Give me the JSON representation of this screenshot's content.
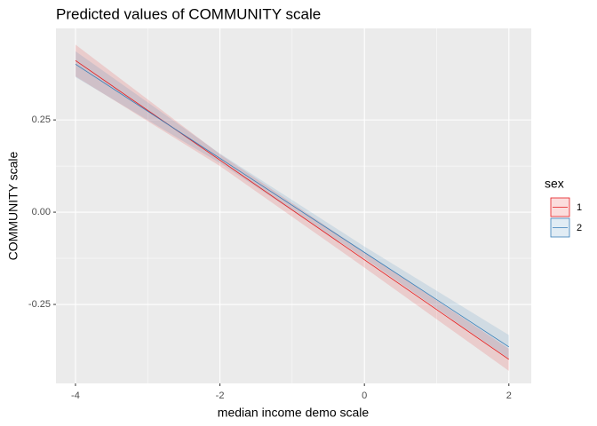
{
  "chart_data": {
    "type": "line",
    "title": "Predicted values of COMMUNITY scale",
    "x_label": "median income demo scale",
    "y_label": "COMMUNITY scale",
    "legend_title": "sex",
    "x": [
      -4,
      -2,
      0,
      2
    ],
    "series": [
      {
        "name": "1",
        "color": "#e41a1c",
        "values": [
          0.411,
          0.141,
          -0.129,
          -0.399
        ],
        "lower": [
          0.368,
          0.125,
          -0.15,
          -0.43
        ],
        "upper": [
          0.454,
          0.157,
          -0.108,
          -0.37
        ]
      },
      {
        "name": "2",
        "color": "#377eb8",
        "values": [
          0.401,
          0.146,
          -0.109,
          -0.365
        ],
        "lower": [
          0.366,
          0.133,
          -0.125,
          -0.397
        ],
        "upper": [
          0.436,
          0.159,
          -0.093,
          -0.333
        ]
      }
    ],
    "xlim": [
      -4.27,
      2.31
    ],
    "ylim": [
      -0.464,
      0.498
    ],
    "xticks": [
      -4,
      -2,
      0,
      2
    ],
    "yticks": [
      {
        "value": 0.25,
        "label": "0.25"
      },
      {
        "value": 0,
        "label": "0.00"
      },
      {
        "value": -0.25,
        "label": "-0.25"
      }
    ],
    "grid": true
  }
}
